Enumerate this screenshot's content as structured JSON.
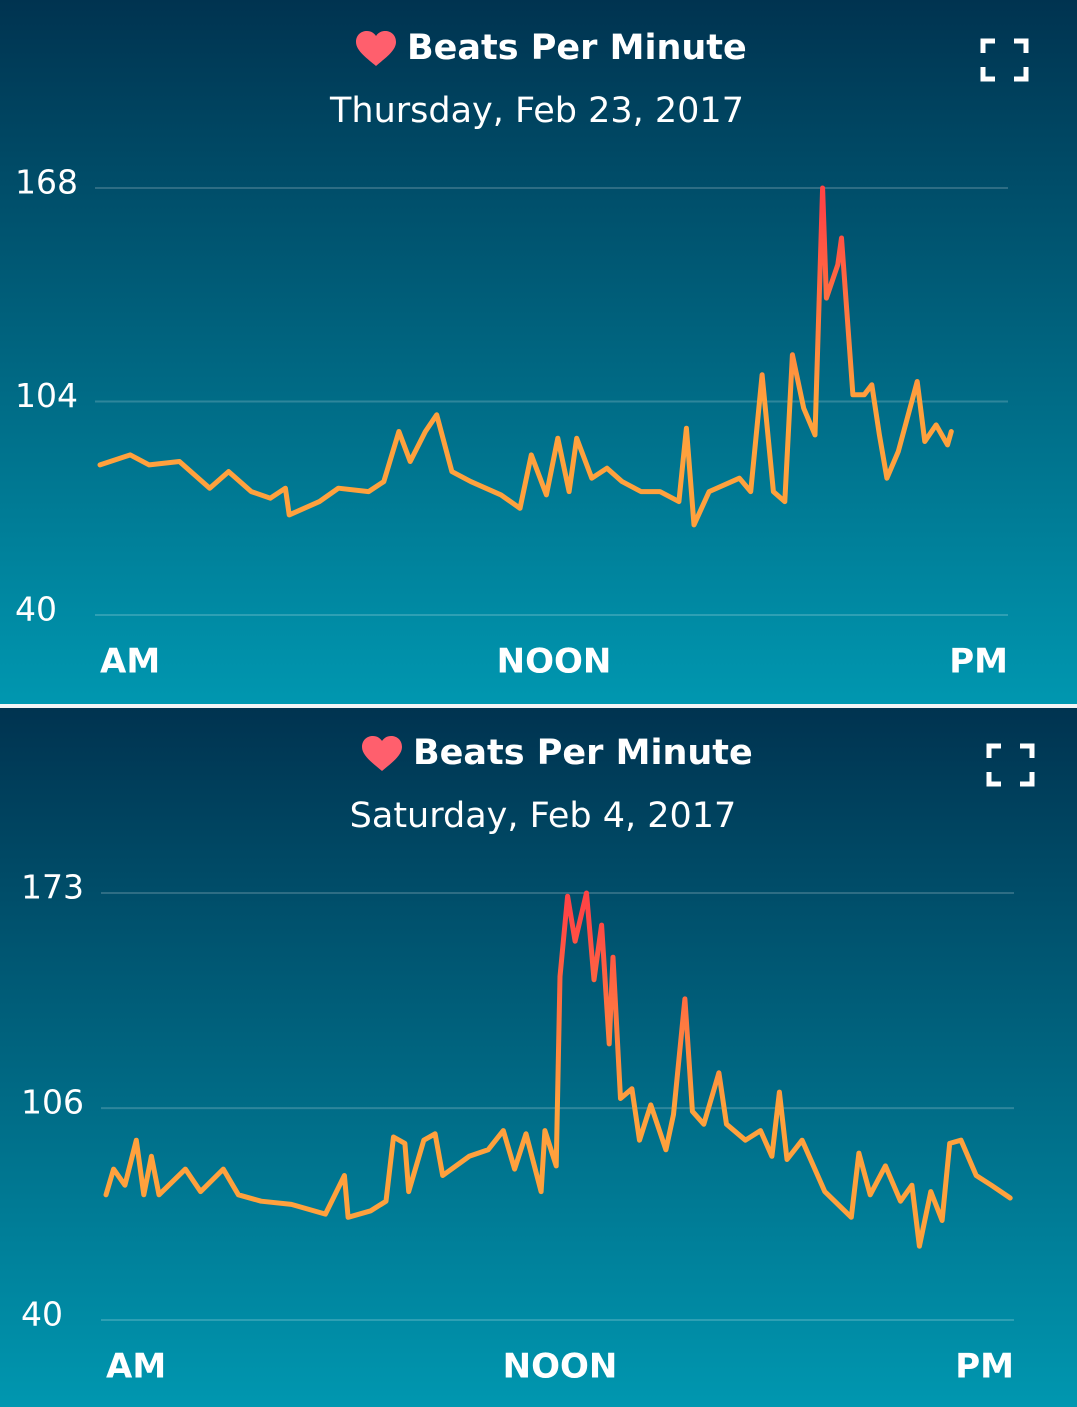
{
  "chart_data": [
    {
      "type": "line",
      "title": "Beats Per Minute",
      "subtitle": "Thursday, Feb 23, 2017",
      "x": [
        0,
        0.8,
        1.3,
        2.1,
        2.9,
        3.4,
        4.0,
        4.5,
        4.9,
        5.0,
        5.8,
        6.3,
        7.1,
        7.5,
        7.9,
        8.2,
        8.6,
        8.9,
        9.3,
        9.8,
        10.6,
        11.1,
        11.4,
        11.8,
        12.1,
        12.4,
        12.6,
        13.0,
        13.4,
        13.8,
        14.3,
        14.8,
        15.3,
        15.5,
        15.7,
        16.1,
        16.9,
        17.2,
        17.5,
        17.8,
        18.1,
        18.3,
        18.6,
        18.9,
        19.1,
        19.2,
        19.5,
        19.6,
        19.9,
        20.2,
        20.4,
        20.6,
        20.8,
        21.1,
        21.6,
        21.8,
        22.1,
        22.4,
        22.5
      ],
      "series": [
        {
          "color": "#ffa13d",
          "peak_color": "#ff4545",
          "values": [
            85,
            88,
            85,
            86,
            78,
            83,
            77,
            75,
            78,
            70,
            74,
            78,
            77,
            80,
            95,
            86,
            95,
            100,
            83,
            80,
            76,
            72,
            88,
            76,
            93,
            77,
            93,
            81,
            84,
            80,
            77,
            77,
            74,
            96,
            67,
            77,
            81,
            77,
            112,
            77,
            74,
            118,
            102,
            94,
            168,
            135,
            145,
            153,
            106,
            106,
            109,
            94,
            81,
            89,
            110,
            92,
            97,
            91,
            95
          ]
        }
      ],
      "xlim": [
        0,
        24
      ],
      "xticks": [
        {
          "value": 0,
          "label": "AM"
        },
        {
          "value": 12,
          "label": "NOON"
        },
        {
          "value": 24,
          "label": "PM"
        }
      ],
      "ylim": [
        40,
        168
      ],
      "yticks": [
        40,
        104,
        168
      ],
      "grid": true
    },
    {
      "type": "line",
      "title": "Beats Per Minute",
      "subtitle": "Saturday, Feb 4, 2017",
      "x": [
        0,
        0.2,
        0.5,
        0.8,
        1.0,
        1.2,
        1.4,
        2.1,
        2.5,
        3.1,
        3.5,
        4.1,
        4.9,
        5.8,
        6.3,
        6.4,
        7.0,
        7.4,
        7.6,
        7.9,
        8.0,
        8.4,
        8.7,
        8.9,
        9.6,
        10.1,
        10.5,
        10.8,
        11.1,
        11.5,
        11.6,
        11.9,
        12.0,
        12.2,
        12.4,
        12.7,
        12.9,
        13.1,
        13.3,
        13.4,
        13.6,
        13.9,
        14.1,
        14.4,
        14.8,
        15.0,
        15.3,
        15.5,
        15.8,
        16.2,
        16.4,
        16.9,
        17.3,
        17.6,
        17.8,
        18.0,
        18.4,
        19.0,
        19.7,
        19.9,
        20.2,
        20.6,
        21.0,
        21.3,
        21.5,
        21.8,
        22.1,
        22.3,
        22.6,
        23.0,
        23.4,
        23.9
      ],
      "series": [
        {
          "color": "#ffa13d",
          "peak_color": "#ff4545",
          "values": [
            79,
            87,
            82,
            96,
            79,
            91,
            79,
            87,
            80,
            87,
            79,
            77,
            76,
            73,
            85,
            72,
            74,
            77,
            97,
            95,
            80,
            96,
            98,
            85,
            91,
            93,
            99,
            87,
            98,
            80,
            99,
            88,
            147,
            172,
            158,
            173,
            146,
            163,
            126,
            153,
            109,
            112,
            96,
            107,
            93,
            104,
            140,
            105,
            101,
            117,
            101,
            96,
            99,
            91,
            111,
            90,
            96,
            80,
            72,
            92,
            79,
            88,
            77,
            82,
            63,
            80,
            71,
            95,
            96,
            85,
            82,
            78
          ]
        }
      ],
      "xlim": [
        0,
        24
      ],
      "xticks": [
        {
          "value": 0,
          "label": "AM"
        },
        {
          "value": 12,
          "label": "NOON"
        },
        {
          "value": 24,
          "label": "PM"
        }
      ],
      "ylim": [
        40,
        173
      ],
      "yticks": [
        40,
        106,
        173
      ],
      "grid": true
    }
  ]
}
